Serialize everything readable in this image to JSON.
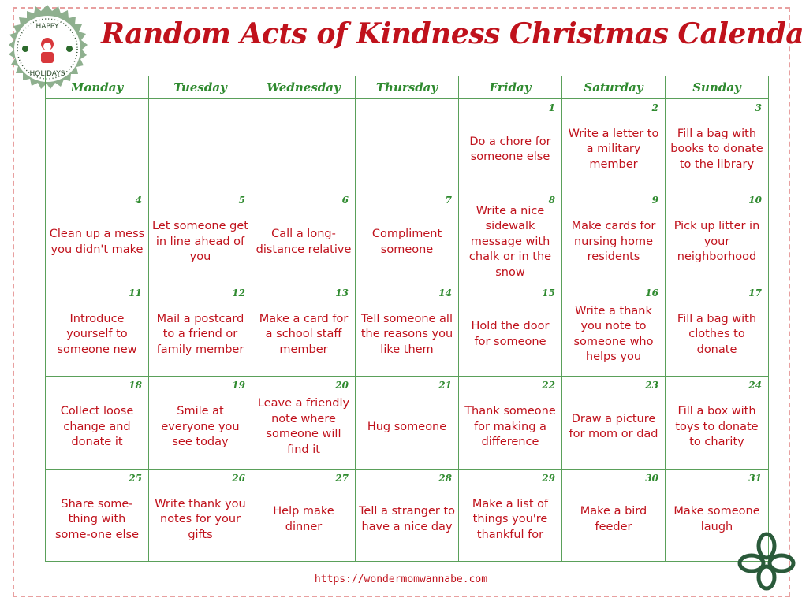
{
  "title": "Random Acts of Kindness Christmas Calendar",
  "badge": {
    "text": "HAPPY HOLIDAYS",
    "icon": "santa-icon"
  },
  "days": [
    "Monday",
    "Tuesday",
    "Wednesday",
    "Thursday",
    "Friday",
    "Saturday",
    "Sunday"
  ],
  "weeks": [
    [
      null,
      null,
      null,
      null,
      {
        "n": "1",
        "t": "Do a chore for someone else"
      },
      {
        "n": "2",
        "t": "Write a letter to a military member"
      },
      {
        "n": "3",
        "t": "Fill a bag with books to donate to the library"
      }
    ],
    [
      {
        "n": "4",
        "t": "Clean up a mess you didn't make"
      },
      {
        "n": "5",
        "t": "Let someone get in line ahead of you"
      },
      {
        "n": "6",
        "t": "Call a long-distance relative"
      },
      {
        "n": "7",
        "t": "Compliment someone"
      },
      {
        "n": "8",
        "t": "Write a nice sidewalk message with chalk or in the snow"
      },
      {
        "n": "9",
        "t": "Make cards for nursing home residents"
      },
      {
        "n": "10",
        "t": "Pick up litter in your neighborhood"
      }
    ],
    [
      {
        "n": "11",
        "t": "Introduce yourself to someone new"
      },
      {
        "n": "12",
        "t": "Mail a postcard to a friend or family member"
      },
      {
        "n": "13",
        "t": "Make a card for a school staff member"
      },
      {
        "n": "14",
        "t": "Tell someone all the reasons you like them"
      },
      {
        "n": "15",
        "t": "Hold the door for someone"
      },
      {
        "n": "16",
        "t": "Write a thank you note to someone who helps you"
      },
      {
        "n": "17",
        "t": "Fill a bag with clothes to donate"
      }
    ],
    [
      {
        "n": "18",
        "t": "Collect loose change and donate it"
      },
      {
        "n": "19",
        "t": "Smile at everyone you see today"
      },
      {
        "n": "20",
        "t": "Leave a friendly note where someone will find it"
      },
      {
        "n": "21",
        "t": "Hug someone"
      },
      {
        "n": "22",
        "t": "Thank someone for making a difference"
      },
      {
        "n": "23",
        "t": "Draw a picture for mom or dad"
      },
      {
        "n": "24",
        "t": "Fill a box with toys to donate to charity"
      }
    ],
    [
      {
        "n": "25",
        "t": "Share some-thing with some-one else"
      },
      {
        "n": "26",
        "t": "Write thank you notes for your gifts"
      },
      {
        "n": "27",
        "t": "Help make dinner"
      },
      {
        "n": "28",
        "t": "Tell a stranger to have a nice day"
      },
      {
        "n": "29",
        "t": "Make a list of things you're thankful for"
      },
      {
        "n": "30",
        "t": "Make a bird feeder"
      },
      {
        "n": "31",
        "t": "Make someone laugh"
      }
    ]
  ],
  "footer_url": "https://wondermomwannabe.com",
  "colors": {
    "red": "#c0121c",
    "green": "#2f8a2f",
    "badge": "#8fb08f"
  }
}
